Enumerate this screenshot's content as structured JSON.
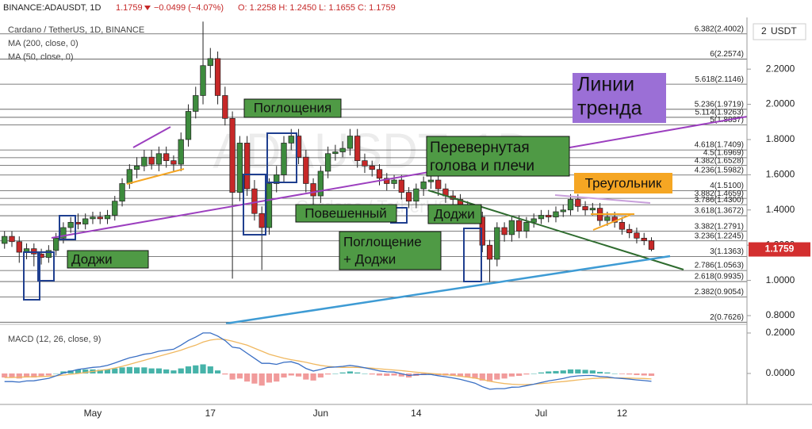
{
  "header": {
    "symbol": "BINANCE:ADAUSDT, 1D",
    "price": "1.1759",
    "change": "−0.0499 (−4.07%)",
    "ohlc": "O: 1.2258  H: 1.2450  L: 1.1655  C: 1.1759"
  },
  "legend": [
    "Cardano / TetherUS, 1D, BINANCE",
    "MA (200, close, 0)",
    "MA (50, close, 0)"
  ],
  "watermark": [
    "ADAUSDT, 1D",
    "Cardano / TetherUS"
  ],
  "currency": "USDT",
  "annotations": [
    [
      "Поглощения"
    ],
    [
      "Повешенный"
    ],
    [
      "Доджи"
    ],
    [
      "Доджи"
    ],
    [
      "Поглощение",
      "+ Доджи"
    ],
    [
      "Перевернутая",
      "голова и плечи"
    ],
    [
      "Треугольник"
    ],
    [
      "Линии",
      "тренда"
    ]
  ],
  "chart_data": [
    {
      "type": "candlestick",
      "up_color": "#3d8b3d",
      "down_color": "#c62828",
      "last_label": "1.1759",
      "categories": [
        null,
        null,
        null,
        null,
        null,
        null,
        null,
        null,
        null,
        null,
        null,
        null,
        "May",
        null,
        null,
        null,
        null,
        null,
        null,
        null,
        null,
        null,
        null,
        null,
        null,
        null,
        null,
        null,
        "17",
        null,
        null,
        null,
        null,
        null,
        null,
        null,
        null,
        null,
        null,
        null,
        null,
        null,
        null,
        "Jun",
        null,
        null,
        null,
        null,
        null,
        null,
        null,
        null,
        null,
        null,
        null,
        null,
        "14",
        null,
        null,
        null,
        null,
        null,
        null,
        null,
        null,
        null,
        null,
        null,
        null,
        null,
        null,
        null,
        null,
        "Jul",
        null,
        null,
        null,
        null,
        null,
        null,
        null,
        null,
        null,
        null,
        "12",
        null,
        null,
        null,
        null
      ],
      "open": [
        1.21,
        1.25,
        1.22,
        1.16,
        1.18,
        1.15,
        1.13,
        1.17,
        1.24,
        1.3,
        1.33,
        1.32,
        1.35,
        1.36,
        1.35,
        1.37,
        1.45,
        1.55,
        1.63,
        1.65,
        1.7,
        1.66,
        1.72,
        1.68,
        1.66,
        1.8,
        1.96,
        2.05,
        2.22,
        2.26,
        2.05,
        1.92,
        1.5,
        1.78,
        1.52,
        1.38,
        1.3,
        1.55,
        1.6,
        1.78,
        1.82,
        1.7,
        1.55,
        1.48,
        1.62,
        1.72,
        1.73,
        1.75,
        1.82,
        1.68,
        1.65,
        1.63,
        1.58,
        1.55,
        1.57,
        1.5,
        1.45,
        1.52,
        1.56,
        1.57,
        1.52,
        1.48,
        1.46,
        1.42,
        1.4,
        1.36,
        1.2,
        1.12,
        1.3,
        1.26,
        1.34,
        1.28,
        1.33,
        1.35,
        1.37,
        1.36,
        1.39,
        1.4,
        1.46,
        1.42,
        1.4,
        1.41,
        1.34,
        1.36,
        1.33,
        1.29,
        1.27,
        1.24,
        1.2258
      ],
      "high": [
        1.28,
        1.28,
        1.25,
        1.21,
        1.21,
        1.18,
        1.2,
        1.27,
        1.33,
        1.36,
        1.38,
        1.38,
        1.39,
        1.39,
        1.4,
        1.48,
        1.58,
        1.66,
        1.7,
        1.74,
        1.74,
        1.76,
        1.76,
        1.71,
        1.84,
        2.0,
        2.1,
        2.47,
        2.32,
        2.3,
        2.1,
        1.96,
        1.82,
        1.82,
        1.57,
        1.42,
        1.58,
        1.65,
        1.82,
        1.86,
        1.86,
        1.74,
        1.58,
        1.65,
        1.76,
        1.77,
        1.79,
        1.86,
        1.86,
        1.72,
        1.68,
        1.66,
        1.61,
        1.6,
        1.6,
        1.53,
        1.55,
        1.59,
        1.6,
        1.6,
        1.55,
        1.51,
        1.49,
        1.45,
        1.43,
        1.39,
        1.23,
        1.33,
        1.33,
        1.37,
        1.37,
        1.36,
        1.38,
        1.4,
        1.4,
        1.42,
        1.43,
        1.49,
        1.49,
        1.45,
        1.44,
        1.44,
        1.39,
        1.39,
        1.36,
        1.32,
        1.3,
        1.27,
        1.245
      ],
      "low": [
        1.18,
        1.19,
        1.1,
        1.12,
        1.08,
        1.09,
        1.1,
        1.14,
        1.21,
        1.27,
        1.29,
        1.29,
        1.32,
        1.32,
        1.32,
        1.34,
        1.42,
        1.52,
        1.58,
        1.62,
        1.63,
        1.62,
        1.64,
        1.62,
        1.62,
        1.76,
        1.92,
        2.0,
        2.15,
        2.0,
        1.88,
        1.01,
        1.45,
        1.48,
        1.34,
        1.06,
        1.26,
        1.5,
        1.56,
        1.74,
        1.66,
        1.5,
        1.42,
        1.44,
        1.58,
        1.68,
        1.7,
        1.71,
        1.64,
        1.61,
        1.59,
        1.54,
        1.51,
        1.52,
        1.46,
        1.41,
        1.41,
        1.48,
        1.52,
        1.48,
        1.44,
        1.42,
        1.38,
        1.36,
        1.32,
        1.16,
        0.99,
        1.08,
        1.22,
        1.22,
        1.24,
        1.24,
        1.3,
        1.32,
        1.33,
        1.33,
        1.36,
        1.37,
        1.39,
        1.37,
        1.37,
        1.31,
        1.31,
        1.3,
        1.26,
        1.24,
        1.21,
        1.2,
        1.1655
      ],
      "close": [
        1.25,
        1.22,
        1.16,
        1.18,
        1.15,
        1.13,
        1.17,
        1.24,
        1.3,
        1.33,
        1.32,
        1.35,
        1.36,
        1.35,
        1.37,
        1.45,
        1.55,
        1.63,
        1.65,
        1.7,
        1.66,
        1.72,
        1.68,
        1.66,
        1.8,
        1.96,
        2.05,
        2.22,
        2.26,
        2.05,
        1.92,
        1.5,
        1.78,
        1.52,
        1.38,
        1.3,
        1.55,
        1.6,
        1.78,
        1.82,
        1.7,
        1.55,
        1.48,
        1.62,
        1.72,
        1.73,
        1.75,
        1.82,
        1.68,
        1.65,
        1.63,
        1.58,
        1.55,
        1.57,
        1.5,
        1.45,
        1.52,
        1.56,
        1.57,
        1.52,
        1.48,
        1.46,
        1.42,
        1.4,
        1.36,
        1.2,
        1.12,
        1.3,
        1.26,
        1.34,
        1.28,
        1.33,
        1.35,
        1.37,
        1.36,
        1.39,
        1.4,
        1.46,
        1.42,
        1.4,
        1.41,
        1.34,
        1.36,
        1.33,
        1.29,
        1.27,
        1.24,
        1.2258,
        1.1759
      ],
      "ylim": [
        0.755,
        2.48
      ],
      "yticks": [
        {
          "value": 0.8,
          "label": "0.8000"
        },
        {
          "value": 1.0,
          "label": "1.0000"
        },
        {
          "value": 1.2,
          "label": "1.2000"
        },
        {
          "value": 1.4,
          "label": "1.4000"
        },
        {
          "value": 1.6,
          "label": "1.6000"
        },
        {
          "value": 1.8,
          "label": "1.8000"
        },
        {
          "value": 2.0,
          "label": "2.0000"
        },
        {
          "value": 2.2,
          "label": "2.2000"
        }
      ],
      "levels": [
        {
          "value": 2.4002,
          "label": "6.382(2.4002)"
        },
        {
          "value": 2.2574,
          "label": "6(2.2574)"
        },
        {
          "value": 2.1146,
          "label": "5.618(2.1146)"
        },
        {
          "value": 1.9719,
          "label": "5.236(1.9719)"
        },
        {
          "value": 1.9263,
          "label": "5.114(1.9263)"
        },
        {
          "value": 1.8837,
          "label": "5(1.8837)"
        },
        {
          "value": 1.7409,
          "label": "4.618(1.7409)"
        },
        {
          "value": 1.6969,
          "label": "4.5(1.6969)"
        },
        {
          "value": 1.6528,
          "label": "4.382(1.6528)"
        },
        {
          "value": 1.5982,
          "label": "4.236(1.5982)"
        },
        {
          "value": 1.51,
          "label": "4(1.5100)"
        },
        {
          "value": 1.4659,
          "label": "3.882(1.4659)"
        },
        {
          "value": 1.43,
          "label": "3.786(1.4300)"
        },
        {
          "value": 1.3672,
          "label": "3.618(1.3672)"
        },
        {
          "value": 1.2791,
          "label": "3.382(1.2791)"
        },
        {
          "value": 1.2245,
          "label": "3.236(1.2245)"
        },
        {
          "value": 1.1363,
          "label": "3(1.1363)"
        },
        {
          "value": 1.0563,
          "label": "2.786(1.0563)"
        },
        {
          "value": 0.9935,
          "label": "2.618(0.9935)"
        },
        {
          "value": 0.9054,
          "label": "2.382(0.9054)"
        },
        {
          "value": 0.7626,
          "label": "2(0.7626)"
        }
      ]
    },
    {
      "type": "macd",
      "title": "MACD (12, 26, close, 9)",
      "macd_color": "#3a6fc4",
      "signal_color": "#f0b860",
      "up_color": "#26a69a",
      "down_color": "#ef8a8a",
      "histogram": [
        -0.02,
        -0.02,
        -0.025,
        -0.02,
        -0.02,
        -0.015,
        -0.01,
        0.0,
        0.01,
        0.015,
        0.02,
        0.02,
        0.02,
        0.018,
        0.02,
        0.025,
        0.03,
        0.032,
        0.03,
        0.03,
        0.025,
        0.025,
        0.02,
        0.015,
        0.025,
        0.035,
        0.04,
        0.045,
        0.035,
        0.015,
        -0.005,
        -0.03,
        -0.025,
        -0.04,
        -0.05,
        -0.06,
        -0.045,
        -0.04,
        -0.02,
        -0.01,
        -0.015,
        -0.03,
        -0.035,
        -0.02,
        -0.005,
        0.0,
        0.005,
        0.01,
        0.005,
        0.0,
        -0.005,
        -0.01,
        -0.012,
        -0.01,
        -0.015,
        -0.02,
        -0.012,
        -0.008,
        -0.005,
        -0.008,
        -0.01,
        -0.012,
        -0.015,
        -0.02,
        -0.025,
        -0.035,
        -0.04,
        -0.03,
        -0.025,
        -0.015,
        -0.012,
        -0.005,
        0.0,
        0.005,
        0.01,
        0.012,
        0.015,
        0.02,
        0.02,
        0.018,
        0.015,
        0.008,
        0.005,
        0.0,
        -0.003,
        -0.005,
        -0.008,
        -0.01,
        -0.012
      ],
      "macd": [
        -0.04,
        -0.04,
        -0.043,
        -0.037,
        -0.036,
        -0.03,
        -0.024,
        -0.012,
        0.002,
        0.011,
        0.02,
        0.025,
        0.03,
        0.033,
        0.04,
        0.052,
        0.065,
        0.077,
        0.085,
        0.095,
        0.1,
        0.11,
        0.115,
        0.12,
        0.14,
        0.163,
        0.18,
        0.2,
        0.2,
        0.185,
        0.163,
        0.13,
        0.125,
        0.1,
        0.075,
        0.05,
        0.05,
        0.045,
        0.055,
        0.058,
        0.047,
        0.025,
        0.012,
        0.02,
        0.03,
        0.032,
        0.035,
        0.04,
        0.035,
        0.028,
        0.021,
        0.013,
        0.008,
        0.007,
        -0.001,
        -0.01,
        -0.006,
        -0.005,
        -0.005,
        -0.011,
        -0.016,
        -0.022,
        -0.029,
        -0.038,
        -0.048,
        -0.065,
        -0.078,
        -0.075,
        -0.075,
        -0.068,
        -0.067,
        -0.06,
        -0.053,
        -0.045,
        -0.037,
        -0.031,
        -0.025,
        -0.016,
        -0.012,
        -0.01,
        -0.01,
        -0.015,
        -0.017,
        -0.022,
        -0.025,
        -0.028,
        -0.032,
        -0.035,
        -0.039
      ],
      "signal": [
        -0.02,
        -0.02,
        -0.018,
        -0.017,
        -0.016,
        -0.015,
        -0.014,
        -0.012,
        -0.008,
        -0.004,
        0.0,
        0.005,
        0.01,
        0.015,
        0.02,
        0.027,
        0.035,
        0.045,
        0.055,
        0.065,
        0.075,
        0.085,
        0.095,
        0.105,
        0.115,
        0.128,
        0.14,
        0.155,
        0.165,
        0.17,
        0.168,
        0.16,
        0.15,
        0.14,
        0.125,
        0.11,
        0.095,
        0.085,
        0.075,
        0.068,
        0.062,
        0.055,
        0.047,
        0.04,
        0.035,
        0.032,
        0.03,
        0.03,
        0.03,
        0.028,
        0.026,
        0.023,
        0.02,
        0.017,
        0.014,
        0.01,
        0.006,
        0.003,
        0.0,
        -0.003,
        -0.006,
        -0.01,
        -0.014,
        -0.018,
        -0.023,
        -0.03,
        -0.038,
        -0.045,
        -0.05,
        -0.053,
        -0.055,
        -0.055,
        -0.053,
        -0.05,
        -0.047,
        -0.043,
        -0.04,
        -0.036,
        -0.032,
        -0.028,
        -0.025,
        -0.023,
        -0.022,
        -0.022,
        -0.022,
        -0.023,
        -0.024,
        -0.025,
        -0.027
      ],
      "ylim": [
        -0.153,
        0.239
      ],
      "yticks": [
        {
          "value": 0.2,
          "label": "0.2000"
        },
        {
          "value": 0,
          "label": "0.0000"
        }
      ]
    }
  ]
}
